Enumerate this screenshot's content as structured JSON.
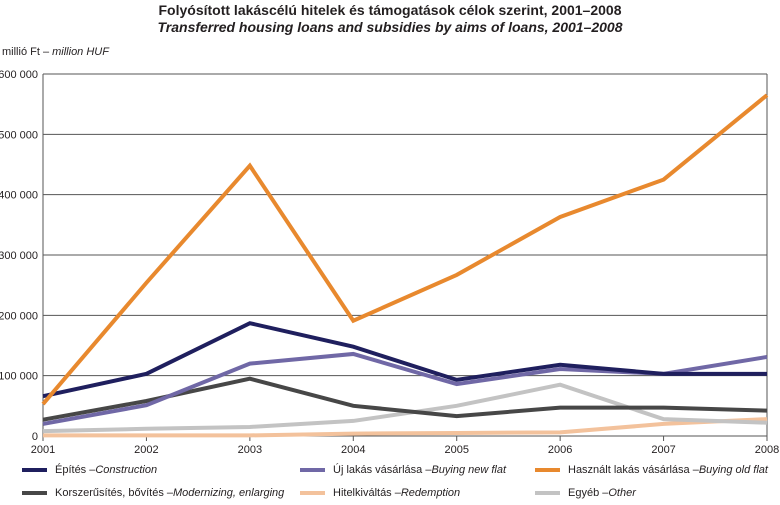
{
  "title": "Folyósított lakáscélú hitelek és támogatások célok szerint, 2001–2008",
  "subtitle": "Transferred housing loans and subsidies by aims of loans, 2001–2008",
  "unit_hu": "millió Ft – ",
  "unit_en": "million HUF",
  "chart_data": {
    "type": "line",
    "title": "Folyósított lakáscélú hitelek és támogatások célok szerint, 2001–2008 / Transferred housing loans and subsidies by aims of loans, 2001–2008",
    "ylabel": "millió Ft – million HUF",
    "ylim": [
      0,
      600000
    ],
    "yticks": [
      "0",
      "100 000",
      "200 000",
      "300 000",
      "400 000",
      "500 000",
      "600 000"
    ],
    "categories": [
      "2001",
      "2002",
      "2003",
      "2004",
      "2005",
      "2006",
      "2007",
      "2008"
    ],
    "grid": true,
    "legend": "bottom",
    "series": [
      {
        "name_hu": "Építés – ",
        "name_en": "Construction",
        "color": "#1f1f5e",
        "values": [
          66000,
          103000,
          187000,
          148000,
          93000,
          118000,
          103000,
          103000
        ]
      },
      {
        "name_hu": "Új lakás vásárlása – ",
        "name_en": "Buying new flat",
        "color": "#7068a6",
        "values": [
          20000,
          51000,
          120000,
          136000,
          86000,
          111000,
          103000,
          131000
        ]
      },
      {
        "name_hu": "Használt lakás vásárlása – ",
        "name_en": "Buying old flat",
        "color": "#e8892e",
        "values": [
          53000,
          254000,
          448000,
          191000,
          267000,
          363000,
          425000,
          565000
        ]
      },
      {
        "name_hu": "Korszerűsítés, bővítés – ",
        "name_en": "Modernizing, enlarging",
        "color": "#474747",
        "values": [
          27000,
          58000,
          95000,
          50000,
          33000,
          47000,
          47000,
          42000
        ]
      },
      {
        "name_hu": "Hitelkiváltás – ",
        "name_en": "Redemption",
        "color": "#f3c29c",
        "values": [
          1000,
          1000,
          1000,
          4000,
          5000,
          6000,
          20000,
          28000
        ]
      },
      {
        "name_hu": "Egyéb – ",
        "name_en": "Other",
        "color": "#c3c3c3",
        "values": [
          8000,
          12000,
          15000,
          25000,
          50000,
          85000,
          28000,
          22000
        ]
      }
    ]
  }
}
